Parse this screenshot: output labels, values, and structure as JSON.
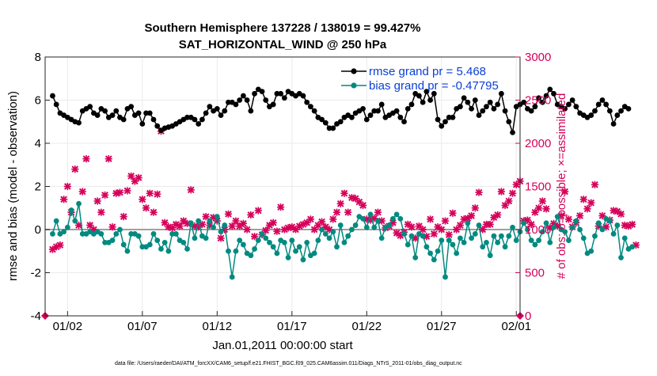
{
  "chart_data": {
    "type": "line",
    "title": "Southern Hemisphere 137228 / 138019 = 99.427%",
    "subtitle": "SAT_HORIZONTAL_WIND @ 250 hPa",
    "xlabel": "Jan.01,2011 00:00:00 start",
    "ylabel_left": "rmse and bias (model - observation)",
    "ylabel_right": "# of obs: o=possible; ×=assimilated",
    "footer": "data file: /Users/raeder/DAI/ATM_forcXX/CAM6_setup/f.e21.FHIST_BGC.f09_025.CAM6assim.011/Diags_NTrS_2011-01/obs_diag_output.nc",
    "x_ticks": [
      "01/02",
      "01/07",
      "01/12",
      "01/17",
      "01/22",
      "01/27",
      "02/01"
    ],
    "y_left_ticks": [
      "-4",
      "-2",
      "0",
      "2",
      "4",
      "6",
      "8"
    ],
    "y_right_ticks": [
      "0",
      "500",
      "1000",
      "1500",
      "2000",
      "2500",
      "3000"
    ],
    "ylim_left": [
      -4,
      8
    ],
    "ylim_right": [
      0,
      3000
    ],
    "xlim": [
      0.5,
      32.25
    ],
    "x_start": 1.0,
    "x_step": 0.25,
    "grid": true,
    "legend_position": "top-right",
    "series": [
      {
        "name": "rmse grand pr = 5.468",
        "axis": "left",
        "color": "#000000",
        "values": [
          6.2,
          5.8,
          5.4,
          5.3,
          5.2,
          5.1,
          5.0,
          4.95,
          5.5,
          5.6,
          5.7,
          5.4,
          5.3,
          5.6,
          5.5,
          5.2,
          5.3,
          5.5,
          5.2,
          5.1,
          5.6,
          5.7,
          5.3,
          5.4,
          4.9,
          5.4,
          5.4,
          5.1,
          4.8,
          4.6,
          4.7,
          4.75,
          4.8,
          4.9,
          5.0,
          5.1,
          5.2,
          5.2,
          5.1,
          4.9,
          5.1,
          5.4,
          5.7,
          5.5,
          5.6,
          5.3,
          5.5,
          5.9,
          5.9,
          5.8,
          6.0,
          6.2,
          6.0,
          5.5,
          6.3,
          6.5,
          6.4,
          6.0,
          5.7,
          5.8,
          6.3,
          6.3,
          6.1,
          6.4,
          6.3,
          6.2,
          6.3,
          6.2,
          5.9,
          5.7,
          5.5,
          5.2,
          5.1,
          4.95,
          4.7,
          4.7,
          4.9,
          5.0,
          5.2,
          5.3,
          5.2,
          5.4,
          5.5,
          5.6,
          5.1,
          5.3,
          5.5,
          5.5,
          5.8,
          5.2,
          5.3,
          5.4,
          5.5,
          5.2,
          5.0,
          5.6,
          5.8,
          6.3,
          6.2,
          5.9,
          6.4,
          6.0,
          6.3,
          5.1,
          4.8,
          5.0,
          5.2,
          5.2,
          5.6,
          5.7,
          6.1,
          5.9,
          5.6,
          6.0,
          5.3,
          5.5,
          5.7,
          5.9,
          5.6,
          5.8,
          6.3,
          5.5,
          5.0,
          4.5,
          5.7,
          5.8,
          5.9,
          5.6,
          5.5,
          5.7,
          6.1,
          5.9,
          6.2,
          6.5,
          6.3,
          5.8,
          5.7,
          5.6,
          5.8,
          6.0,
          5.7,
          5.4,
          5.3,
          5.2,
          5.3,
          5.5,
          5.8,
          6.0,
          5.8,
          5.5,
          4.9,
          5.3,
          5.5,
          5.7,
          5.6
        ]
      },
      {
        "name": "bias grand pr = -0.47795",
        "axis": "left",
        "color": "#008a80",
        "values": [
          -0.2,
          0.4,
          -0.2,
          -0.1,
          0.1,
          0.9,
          0.4,
          1.2,
          -0.2,
          -0.2,
          -0.1,
          -0.2,
          -0.1,
          -0.2,
          -0.6,
          -0.6,
          -0.5,
          -0.2,
          0.0,
          -0.7,
          -1.0,
          -0.2,
          -0.2,
          -0.3,
          -0.8,
          -0.8,
          -0.7,
          -0.2,
          -0.5,
          -0.9,
          -0.6,
          -1.0,
          -0.2,
          -0.2,
          -0.5,
          -0.6,
          -0.9,
          0.3,
          -0.4,
          0.4,
          -0.3,
          -0.4,
          0.4,
          0.1,
          0.6,
          -0.1,
          0.2,
          -1.0,
          -2.2,
          -1.0,
          -0.5,
          -0.7,
          -1.1,
          -1.2,
          -0.9,
          -0.5,
          -0.2,
          -0.4,
          -0.6,
          -0.8,
          -1.1,
          -0.5,
          -0.6,
          -1.3,
          -0.5,
          -1.0,
          -0.8,
          -1.4,
          -0.6,
          -1.2,
          -1.1,
          -0.5,
          0.0,
          -0.2,
          -0.4,
          -0.1,
          -0.8,
          0.2,
          -0.6,
          -0.3,
          0.0,
          0.2,
          0.6,
          0.5,
          0.1,
          0.7,
          0.1,
          0.4,
          -0.4,
          0.1,
          0.2,
          0.5,
          0.7,
          0.5,
          -0.2,
          -0.7,
          -0.3,
          -1.3,
          -0.2,
          -0.3,
          -0.8,
          -1.1,
          -1.4,
          -1.0,
          -0.5,
          -2.2,
          -0.5,
          -0.7,
          -1.1,
          -0.4,
          -0.6,
          0.3,
          -0.4,
          -0.2,
          0.2,
          -0.8,
          -0.6,
          -1.2,
          -0.3,
          -0.6,
          -0.3,
          -0.8,
          -0.3,
          0.1,
          -0.5,
          -0.1,
          0.3,
          0.0,
          -0.5,
          -0.7,
          -0.5,
          -0.1,
          0.3,
          -0.6,
          0.1,
          0.6,
          0.0,
          -0.1,
          -0.5,
          0.1,
          0.4,
          0.0,
          -0.4,
          -1.1,
          -1.0,
          -0.3,
          0.3,
          0.0,
          0.5,
          0.4,
          -0.2,
          0.2,
          -1.3,
          -0.4,
          -0.9,
          -0.8
        ]
      },
      {
        "name": "possible",
        "axis": "right",
        "color": "#d6005a",
        "values": [
          0
        ]
      },
      {
        "name": "assimilated",
        "axis": "right",
        "color": "#d6005a",
        "values": [
          770,
          800,
          820,
          1350,
          1500,
          1200,
          1700,
          1050,
          1440,
          1820,
          1050,
          1000,
          1330,
          1200,
          1400,
          1820,
          1030,
          1420,
          1430,
          1150,
          1450,
          1620,
          1560,
          1600,
          1350,
          1250,
          1420,
          1200,
          1410,
          2140,
          1080,
          1030,
          1020,
          1060,
          1040,
          1100,
          1070,
          1460,
          1040,
          1030,
          1060,
          1150,
          1050,
          1140,
          1100,
          900,
          1000,
          1180,
          1040,
          1100,
          1040,
          1070,
          1000,
          1170,
          920,
          1220,
          940,
          990,
          1050,
          1080,
          980,
          1260,
          1000,
          1020,
          1030,
          1000,
          1040,
          1060,
          1080,
          1120,
          1000,
          1050,
          1090,
          1030,
          1000,
          1120,
          1200,
          1300,
          1420,
          1200,
          1370,
          1360,
          1320,
          1280,
          1120,
          1110,
          1130,
          1200,
          1100,
          1020,
          1040,
          1080,
          960,
          930,
          970,
          1060,
          1030,
          900,
          1040,
          1000,
          920,
          1120,
          950,
          1030,
          1000,
          1100,
          940,
          1190,
          1000,
          1050,
          1120,
          1130,
          1160,
          1250,
          1430,
          1000,
          1060,
          1060,
          1140,
          1170,
          1440,
          1280,
          1330,
          1420,
          1520,
          1560,
          1100,
          1110,
          1060,
          1200,
          1250,
          1330,
          1240,
          1020,
          1070,
          1040,
          1160,
          1440,
          1120,
          1030,
          1080,
          1160,
          1350,
          1240,
          1310,
          1520,
          1040,
          1160,
          1030,
          1110,
          1220,
          1210,
          1180,
          1050,
          1040,
          1060,
          820
        ]
      }
    ]
  }
}
